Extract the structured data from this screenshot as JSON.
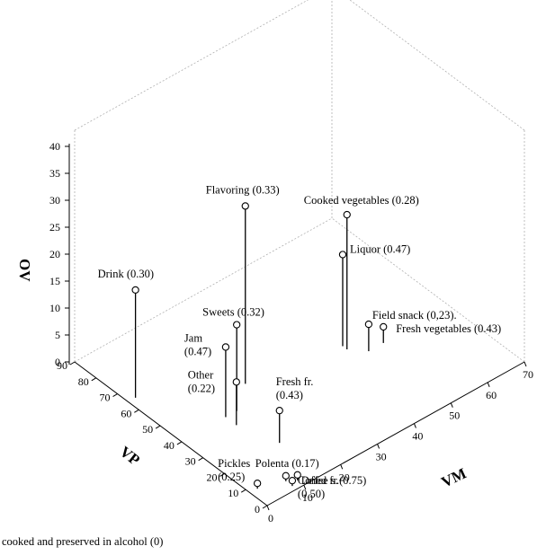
{
  "chart_data": {
    "type": "scatter",
    "title": "",
    "xlabel": "VM",
    "ylabel": "VP",
    "zlabel": "ΟV",
    "x_ticks": [
      "0",
      "10",
      "20",
      "30",
      "40",
      "50",
      "60",
      "70"
    ],
    "y_ticks": [
      "0",
      "10",
      "20",
      "30",
      "40",
      "50",
      "60",
      "70",
      "80",
      "90"
    ],
    "z_ticks": [
      "0",
      "5",
      "10",
      "15",
      "20",
      "25",
      "30",
      "35",
      "40"
    ],
    "xlim": [
      0,
      70
    ],
    "ylim": [
      0,
      90
    ],
    "zlim": [
      0,
      40
    ],
    "grid": false,
    "points": [
      {
        "label": "Flavoring (0.33)",
        "x": 22,
        "y": 48,
        "z": 33
      },
      {
        "label": "Cooked vegetables (0.28)",
        "x": 45,
        "y": 40,
        "z": 25
      },
      {
        "label": "Drink (0.30)",
        "x": 2,
        "y": 65,
        "z": 20
      },
      {
        "label": "Liquor (0.47)",
        "x": 45,
        "y": 42,
        "z": 17
      },
      {
        "label": "Sweets (0.32)",
        "x": 15,
        "y": 40,
        "z": 16
      },
      {
        "label": "Jam (0.47)",
        "x": 12,
        "y": 40,
        "z": 13
      },
      {
        "label": "Other (0.22)",
        "x": 12,
        "y": 35,
        "z": 8
      },
      {
        "label": "Field snack (0,23).",
        "x": 48,
        "y": 35,
        "z": 5
      },
      {
        "label": "Fresh vegetables (0.43)",
        "x": 52,
        "y": 35,
        "z": 3
      },
      {
        "label": "Fresh fr. (0.43)",
        "x": 15,
        "y": 20,
        "z": 6
      },
      {
        "label": "Polenta (0.17)",
        "x": 8,
        "y": 5,
        "z": 1
      },
      {
        "label": "Pickles (0.25)",
        "x": 2,
        "y": 8,
        "z": 1
      },
      {
        "label": "Dried fr.(0.75)",
        "x": 10,
        "y": 3,
        "z": 1
      },
      {
        "label": "Coffee s. (0.50)",
        "x": 8,
        "y": 2,
        "z": 1
      },
      {
        "label": "cooked and preserved in alcohol (0)",
        "x": 0,
        "y": 0,
        "z": 0
      }
    ]
  }
}
